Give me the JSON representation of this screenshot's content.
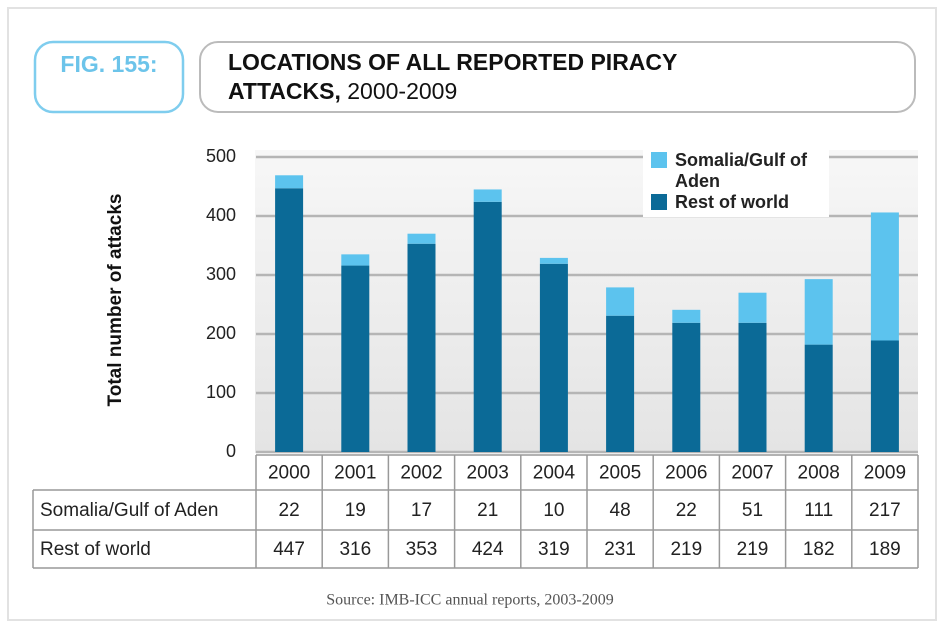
{
  "figure_label": "FIG. 155:",
  "chart_data": {
    "type": "stacked_bar",
    "title": "LOCATIONS OF ALL REPORTED PIRACY",
    "title_line2": "ATTACKS,",
    "title_years": "2000-2009",
    "ylabel": "Total number of attacks",
    "categories": [
      "2000",
      "2001",
      "2002",
      "2003",
      "2004",
      "2005",
      "2006",
      "2007",
      "2008",
      "2009"
    ],
    "series": [
      {
        "name": "Somalia/Gulf of Aden",
        "color": "#5cc3ee",
        "values": [
          22,
          19,
          17,
          21,
          10,
          48,
          22,
          51,
          111,
          217
        ]
      },
      {
        "name": "Rest of world",
        "color": "#0b6a97",
        "values": [
          447,
          316,
          353,
          424,
          319,
          231,
          219,
          219,
          182,
          189
        ]
      }
    ],
    "ylim": [
      0,
      500
    ],
    "yticks": [
      0,
      100,
      200,
      300,
      400,
      500
    ],
    "grid": true,
    "legend": "top-right",
    "source": "Source: IMB-ICC annual reports, 2003-2009"
  }
}
